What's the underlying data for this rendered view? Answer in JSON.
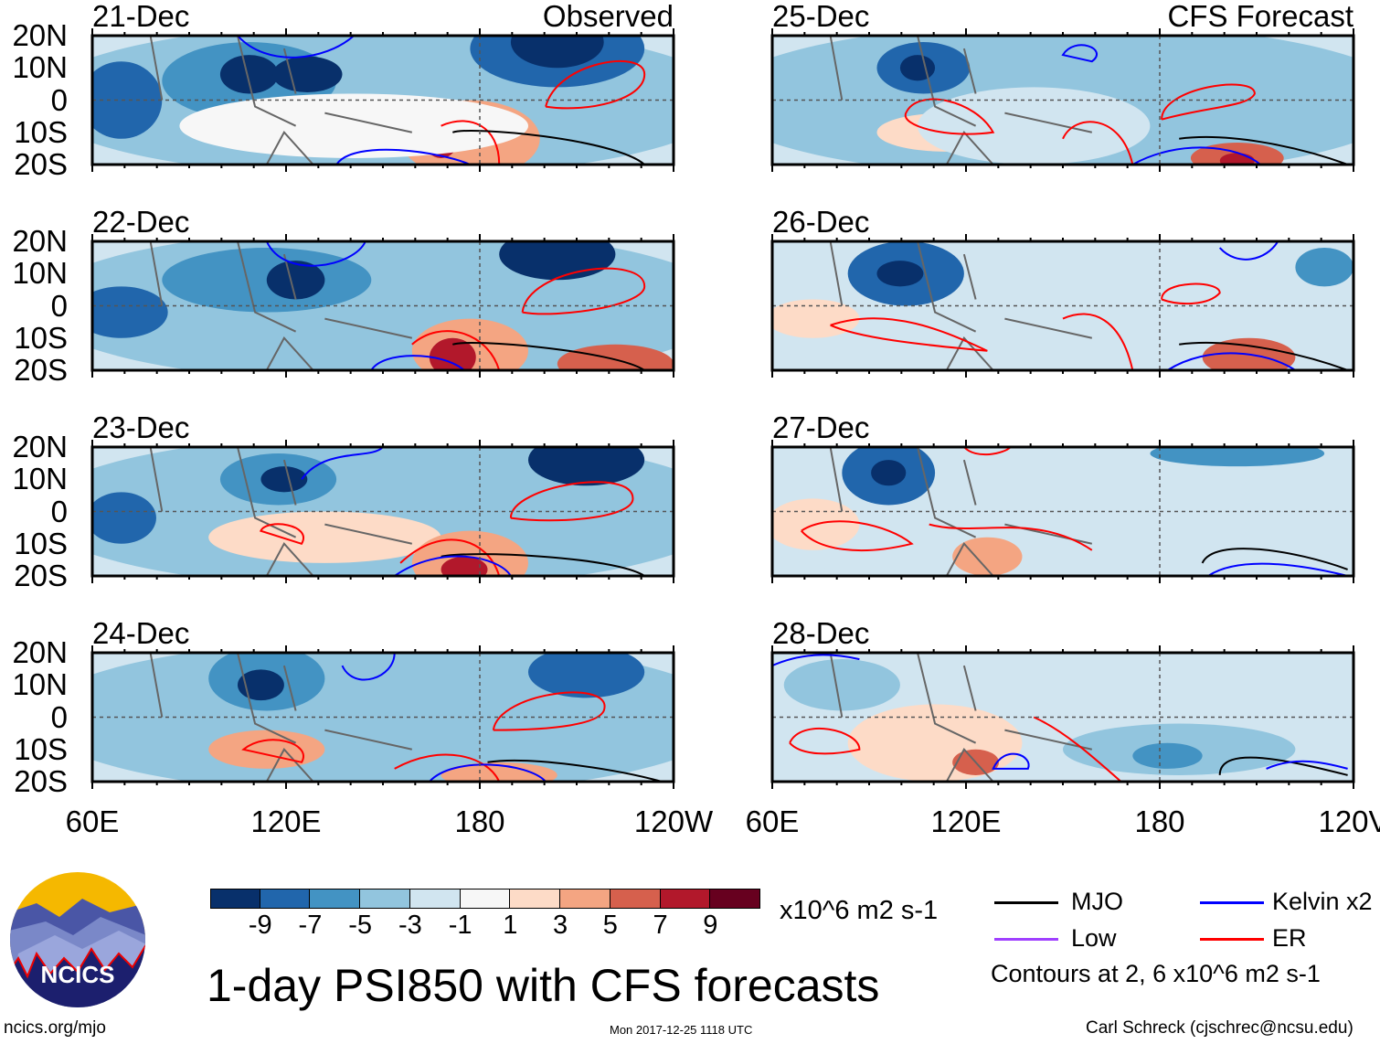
{
  "panels": [
    {
      "date": "21-Dec",
      "label": "Observed",
      "source": "observed"
    },
    {
      "date": "22-Dec",
      "label": "",
      "source": "observed"
    },
    {
      "date": "23-Dec",
      "label": "",
      "source": "observed"
    },
    {
      "date": "24-Dec",
      "label": "",
      "source": "observed"
    },
    {
      "date": "25-Dec",
      "label": "CFS Forecast",
      "source": "forecast"
    },
    {
      "date": "26-Dec",
      "label": "",
      "source": "forecast"
    },
    {
      "date": "27-Dec",
      "label": "",
      "source": "forecast"
    },
    {
      "date": "28-Dec",
      "label": "",
      "source": "forecast"
    }
  ],
  "lat_labels": [
    "20N",
    "10N",
    "0",
    "10S",
    "20S"
  ],
  "lon_labels_left": [
    "60E",
    "120E",
    "180",
    "120W"
  ],
  "lon_labels_right": [
    "60E",
    "120E",
    "180",
    "120V"
  ],
  "colorbar": {
    "colors": [
      "#08306b",
      "#2166ac",
      "#4393c3",
      "#92c5de",
      "#d1e5f0",
      "#f7f7f7",
      "#fddbc7",
      "#f4a582",
      "#d6604d",
      "#b2182b",
      "#67001f"
    ],
    "ticks": [
      "-9",
      "-7",
      "-5",
      "-3",
      "-1",
      "1",
      "3",
      "5",
      "7",
      "9"
    ],
    "units": "x10^6 m2 s-1"
  },
  "legend": {
    "items": [
      {
        "label": "MJO",
        "color": "#000000"
      },
      {
        "label": "Kelvin x2",
        "color": "#0000ff"
      },
      {
        "label": "Low",
        "color": "#a040ff"
      },
      {
        "label": "ER",
        "color": "#ff0000"
      }
    ],
    "note": "Contours at 2, 6 x10^6 m2 s-1"
  },
  "title": "1-day PSI850 with CFS forecasts",
  "logo_text": "NCICS",
  "footer": {
    "url": "ncics.org/mjo",
    "timestamp": "Mon 2017-12-25 1118 UTC",
    "credit": "Carl Schreck (cjschrec@ncsu.edu)"
  }
}
